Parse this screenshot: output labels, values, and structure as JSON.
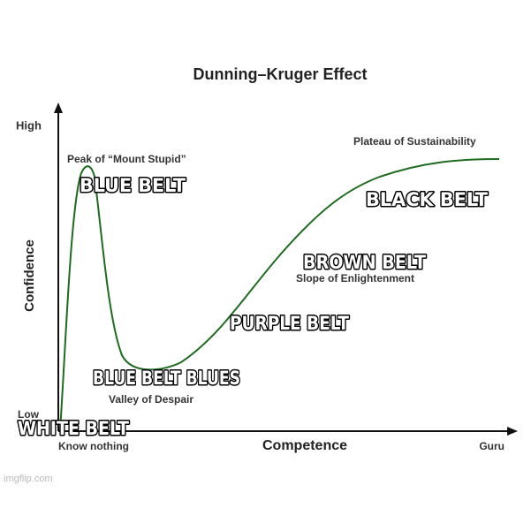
{
  "chart": {
    "title": "Dunning–Kruger Effect",
    "y_axis": {
      "label": "Confidence",
      "high": "High",
      "low": "Low"
    },
    "x_axis": {
      "label": "Competence",
      "start": "Know nothing",
      "end": "Guru"
    },
    "annotations": [
      "Peak of “Mount Stupid”",
      "Valley of Despair",
      "Slope of Enlightenment",
      "Plateau of Sustainability"
    ]
  },
  "captions": [
    "BLUE BELT",
    "BLACK BELT",
    "BROWN BELT",
    "PURPLE BELT",
    "BLUE BELT BLUES",
    "WHITE BELT"
  ],
  "watermark": "imgflip.com"
}
